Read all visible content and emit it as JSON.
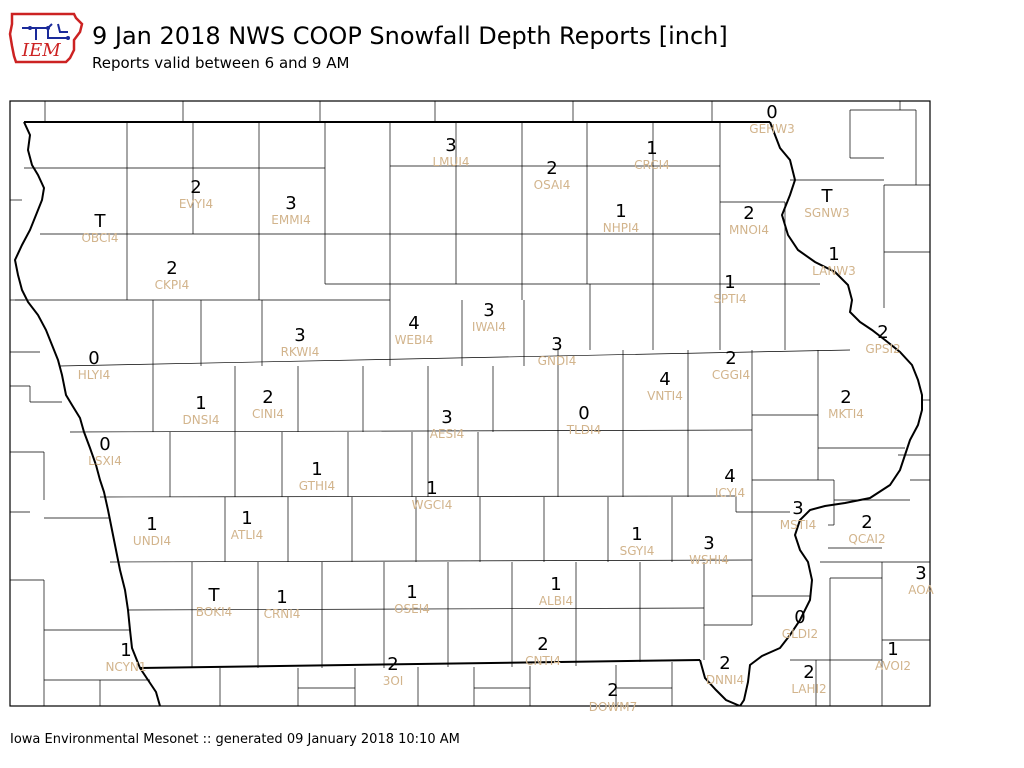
{
  "header": {
    "title": "9 Jan 2018 NWS COOP Snowfall Depth Reports [inch]",
    "subtitle": "Reports valid between 6 and 9 AM",
    "logo_text": "IEM"
  },
  "footer": {
    "text": "Iowa Environmental Mesonet :: generated 09 January 2018 10:10 AM"
  },
  "colors": {
    "station_label": "#d2b48c",
    "value_text": "#000000",
    "logo_red": "#cc2222",
    "logo_blue": "#1a2a9a"
  },
  "stations": [
    {
      "id": "GEHW3",
      "value": "0"
    },
    {
      "id": "LMUI4",
      "value": "3"
    },
    {
      "id": "CRCI4",
      "value": "1"
    },
    {
      "id": "OSAI4",
      "value": "2"
    },
    {
      "id": "EVYI4",
      "value": "2"
    },
    {
      "id": "EMMI4",
      "value": "3"
    },
    {
      "id": "OBCI4",
      "value": "T"
    },
    {
      "id": "NHPI4",
      "value": "1"
    },
    {
      "id": "MNOI4",
      "value": "2"
    },
    {
      "id": "SGNW3",
      "value": "T"
    },
    {
      "id": "LANW3",
      "value": "1"
    },
    {
      "id": "CKPI4",
      "value": "2"
    },
    {
      "id": "SPTI4",
      "value": "1"
    },
    {
      "id": "WEBI4",
      "value": "4"
    },
    {
      "id": "IWAI4",
      "value": "3"
    },
    {
      "id": "RKWI4",
      "value": "3"
    },
    {
      "id": "GNDI4",
      "value": "3"
    },
    {
      "id": "GPSI2",
      "value": "2"
    },
    {
      "id": "HLYI4",
      "value": "0"
    },
    {
      "id": "CGGI4",
      "value": "2"
    },
    {
      "id": "VNTI4",
      "value": "4"
    },
    {
      "id": "DNSI4",
      "value": "1"
    },
    {
      "id": "CINI4",
      "value": "2"
    },
    {
      "id": "MKTI4",
      "value": "2"
    },
    {
      "id": "AESI4",
      "value": "3"
    },
    {
      "id": "TLDI4",
      "value": "0"
    },
    {
      "id": "LSXI4",
      "value": "0"
    },
    {
      "id": "GTHI4",
      "value": "1"
    },
    {
      "id": "ICYI4",
      "value": "4"
    },
    {
      "id": "WGCI4",
      "value": "1"
    },
    {
      "id": "MSTI4",
      "value": "3"
    },
    {
      "id": "UNDI4",
      "value": "1"
    },
    {
      "id": "ATLI4",
      "value": "1"
    },
    {
      "id": "QCAI2",
      "value": "2"
    },
    {
      "id": "SGYI4",
      "value": "1"
    },
    {
      "id": "WSHI4",
      "value": "3"
    },
    {
      "id": "AOA",
      "value": "3"
    },
    {
      "id": "BOKI4",
      "value": "T"
    },
    {
      "id": "CRNI4",
      "value": "1"
    },
    {
      "id": "OSEI4",
      "value": "1"
    },
    {
      "id": "ALBI4",
      "value": "1"
    },
    {
      "id": "GLDI2",
      "value": "0"
    },
    {
      "id": "NCYN1",
      "value": "1"
    },
    {
      "id": "CNTI4",
      "value": "2"
    },
    {
      "id": "AVOI2",
      "value": "1"
    },
    {
      "id": "3OI",
      "value": "2"
    },
    {
      "id": "DNNI4",
      "value": "2"
    },
    {
      "id": "LAHI2",
      "value": "2"
    },
    {
      "id": "DOWM7",
      "value": "2"
    }
  ]
}
